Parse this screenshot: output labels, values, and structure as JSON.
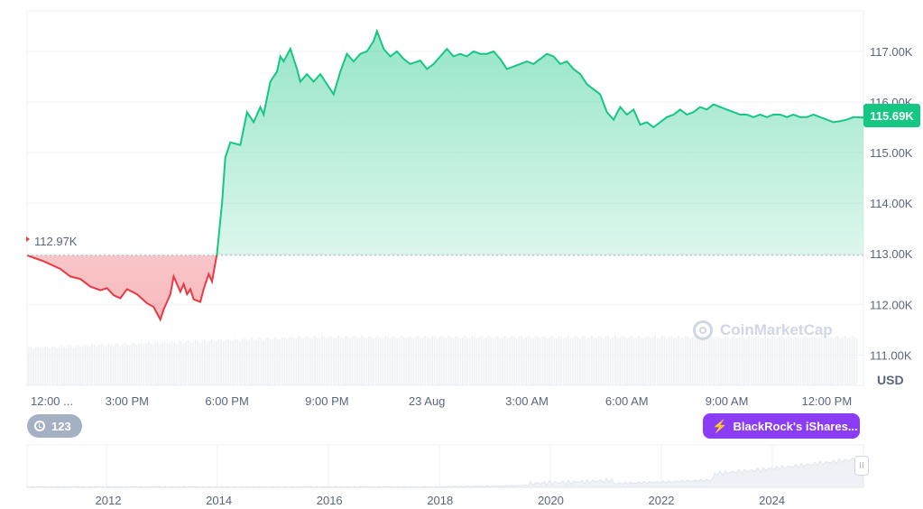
{
  "chart_data": {
    "type": "area",
    "currency": "USD",
    "open_price_label": "112.97K",
    "current_price_label": "115.69K",
    "baseline_value": 112.97,
    "ylim": [
      110.4,
      117.8
    ],
    "y_ticks": [
      111,
      112,
      113,
      114,
      115,
      116,
      117
    ],
    "y_tick_labels": [
      "111.00K",
      "112.00K",
      "113.00K",
      "114.00K",
      "115.00K",
      "116.00K",
      "117.00K"
    ],
    "x_tick_labels": [
      "12:00 ...",
      "3:00 PM",
      "6:00 PM",
      "9:00 PM",
      "23 Aug",
      "3:00 AM",
      "6:00 AM",
      "9:00 AM",
      "12:00 PM"
    ],
    "x_tick_hours": [
      0,
      3,
      6,
      9,
      12,
      15,
      18,
      21,
      24
    ],
    "x_range_hours": [
      0,
      25.1
    ],
    "series": [
      {
        "points": [
          [
            0.0,
            112.97
          ],
          [
            0.5,
            112.85
          ],
          [
            1.0,
            112.7
          ],
          [
            1.3,
            112.55
          ],
          [
            1.6,
            112.5
          ],
          [
            1.9,
            112.35
          ],
          [
            2.2,
            112.28
          ],
          [
            2.4,
            112.32
          ],
          [
            2.6,
            112.18
          ],
          [
            2.8,
            112.12
          ],
          [
            3.0,
            112.3
          ],
          [
            3.3,
            112.2
          ],
          [
            3.6,
            112.02
          ],
          [
            3.8,
            111.95
          ],
          [
            4.0,
            111.7
          ],
          [
            4.1,
            111.9
          ],
          [
            4.3,
            112.2
          ],
          [
            4.4,
            112.55
          ],
          [
            4.6,
            112.25
          ],
          [
            4.7,
            112.4
          ],
          [
            4.8,
            112.2
          ],
          [
            4.9,
            112.3
          ],
          [
            5.0,
            112.1
          ],
          [
            5.2,
            112.05
          ],
          [
            5.3,
            112.3
          ],
          [
            5.45,
            112.6
          ],
          [
            5.55,
            112.45
          ],
          [
            5.7,
            113.0
          ],
          [
            5.85,
            114.0
          ],
          [
            5.95,
            114.9
          ],
          [
            6.1,
            115.2
          ],
          [
            6.4,
            115.15
          ],
          [
            6.6,
            115.8
          ],
          [
            6.8,
            115.6
          ],
          [
            7.0,
            115.9
          ],
          [
            7.1,
            115.75
          ],
          [
            7.3,
            116.4
          ],
          [
            7.5,
            116.6
          ],
          [
            7.6,
            116.9
          ],
          [
            7.7,
            116.8
          ],
          [
            7.9,
            117.05
          ],
          [
            8.1,
            116.65
          ],
          [
            8.2,
            116.4
          ],
          [
            8.4,
            116.55
          ],
          [
            8.6,
            116.4
          ],
          [
            8.8,
            116.55
          ],
          [
            9.0,
            116.35
          ],
          [
            9.2,
            116.15
          ],
          [
            9.4,
            116.6
          ],
          [
            9.6,
            116.95
          ],
          [
            9.8,
            116.8
          ],
          [
            10.0,
            116.95
          ],
          [
            10.2,
            117.0
          ],
          [
            10.4,
            117.2
          ],
          [
            10.5,
            117.4
          ],
          [
            10.7,
            117.05
          ],
          [
            10.9,
            116.9
          ],
          [
            11.1,
            117.0
          ],
          [
            11.3,
            116.85
          ],
          [
            11.5,
            116.75
          ],
          [
            11.8,
            116.82
          ],
          [
            12.0,
            116.65
          ],
          [
            12.2,
            116.75
          ],
          [
            12.4,
            116.9
          ],
          [
            12.6,
            117.05
          ],
          [
            12.8,
            116.9
          ],
          [
            13.0,
            116.95
          ],
          [
            13.2,
            116.9
          ],
          [
            13.4,
            117.0
          ],
          [
            13.6,
            116.95
          ],
          [
            13.8,
            116.95
          ],
          [
            14.0,
            117.0
          ],
          [
            14.2,
            116.85
          ],
          [
            14.4,
            116.65
          ],
          [
            14.6,
            116.7
          ],
          [
            14.8,
            116.75
          ],
          [
            15.0,
            116.8
          ],
          [
            15.2,
            116.75
          ],
          [
            15.4,
            116.85
          ],
          [
            15.6,
            116.95
          ],
          [
            15.8,
            116.9
          ],
          [
            16.0,
            116.75
          ],
          [
            16.2,
            116.8
          ],
          [
            16.4,
            116.65
          ],
          [
            16.6,
            116.55
          ],
          [
            16.8,
            116.35
          ],
          [
            17.0,
            116.25
          ],
          [
            17.2,
            116.15
          ],
          [
            17.4,
            115.8
          ],
          [
            17.6,
            115.65
          ],
          [
            17.8,
            115.9
          ],
          [
            18.0,
            115.75
          ],
          [
            18.2,
            115.85
          ],
          [
            18.4,
            115.55
          ],
          [
            18.6,
            115.6
          ],
          [
            18.8,
            115.5
          ],
          [
            19.0,
            115.6
          ],
          [
            19.2,
            115.7
          ],
          [
            19.4,
            115.75
          ],
          [
            19.6,
            115.85
          ],
          [
            19.8,
            115.75
          ],
          [
            20.0,
            115.8
          ],
          [
            20.2,
            115.9
          ],
          [
            20.4,
            115.85
          ],
          [
            20.6,
            115.95
          ],
          [
            20.8,
            115.9
          ],
          [
            21.0,
            115.85
          ],
          [
            21.2,
            115.8
          ],
          [
            21.4,
            115.75
          ],
          [
            21.6,
            115.75
          ],
          [
            21.8,
            115.7
          ],
          [
            22.0,
            115.75
          ],
          [
            22.2,
            115.7
          ],
          [
            22.4,
            115.75
          ],
          [
            22.6,
            115.75
          ],
          [
            22.8,
            115.7
          ],
          [
            23.0,
            115.75
          ],
          [
            23.2,
            115.7
          ],
          [
            23.4,
            115.7
          ],
          [
            23.6,
            115.75
          ],
          [
            23.8,
            115.7
          ],
          [
            24.0,
            115.65
          ],
          [
            24.2,
            115.6
          ],
          [
            24.4,
            115.62
          ],
          [
            24.6,
            115.65
          ],
          [
            24.8,
            115.7
          ],
          [
            25.1,
            115.69
          ]
        ]
      }
    ],
    "colors": {
      "up_line": "#16c784",
      "down_line": "#ea3943",
      "up_fill": "#16c784",
      "down_fill": "#ea3943",
      "grid": "#eff2f5",
      "axis_text": "#58667e",
      "baseline": "#a6b0c3",
      "volume": "#eff2f5"
    },
    "grid": true,
    "volume_present": true,
    "navigator": {
      "x_tick_labels": [
        "2012",
        "2014",
        "2016",
        "2018",
        "2020",
        "2022",
        "2024"
      ]
    }
  },
  "ui": {
    "events_count": "123",
    "events_icon": "history-icon",
    "news_label": "BlackRock's iShares...",
    "news_icon": "lightning-icon",
    "watermark": "CoinMarketCap",
    "currency_label": "USD",
    "navigator_handle": "II"
  }
}
